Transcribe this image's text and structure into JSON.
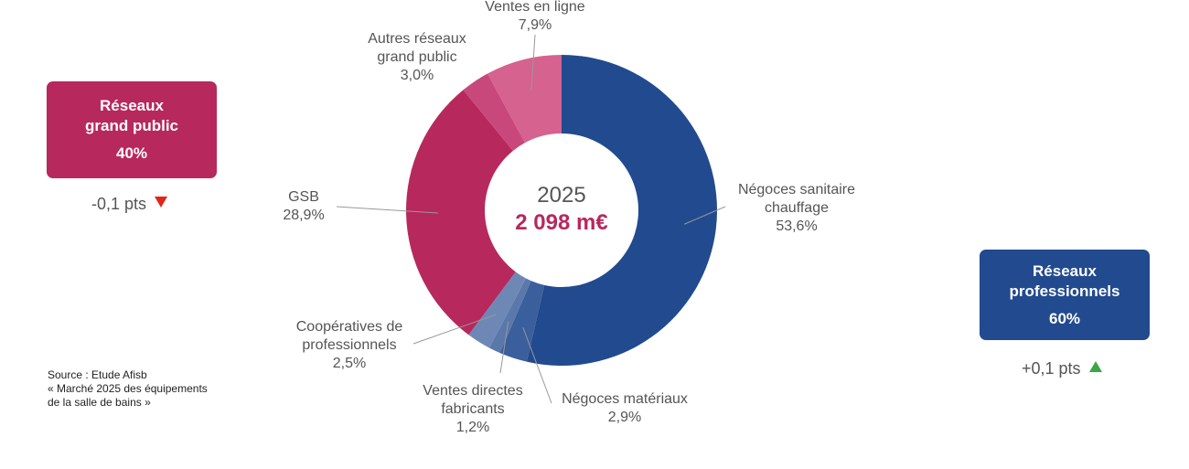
{
  "chart_data": {
    "type": "pie",
    "center_year": "2025",
    "center_total": "2 098 m€",
    "slices": [
      {
        "name": "Négoces sanitaire chauffage",
        "lines": [
          "Négoces sanitaire",
          "chauffage"
        ],
        "value": 53.6,
        "label": "53,6%",
        "color": "#224a8f"
      },
      {
        "name": "Négoces matériaux",
        "lines": [
          "Négoces matériaux"
        ],
        "value": 2.9,
        "label": "2,9%",
        "color": "#3b5f9c"
      },
      {
        "name": "Ventes directes fabricants",
        "lines": [
          "Ventes directes",
          "fabricants"
        ],
        "value": 1.2,
        "label": "1,2%",
        "color": "#5a78aa"
      },
      {
        "name": "Coopératives de professionnels",
        "lines": [
          "Coopératives de",
          "professionnels"
        ],
        "value": 2.5,
        "label": "2,5%",
        "color": "#6e88b6"
      },
      {
        "name": "GSB",
        "lines": [
          "GSB"
        ],
        "value": 28.9,
        "label": "28,9%",
        "color": "#b7285d"
      },
      {
        "name": "Autres réseaux grand public",
        "lines": [
          "Autres réseaux",
          "grand public"
        ],
        "value": 3.0,
        "label": "3,0%",
        "color": "#c9487b"
      },
      {
        "name": "Ventes en ligne",
        "lines": [
          "Ventes en ligne"
        ],
        "value": 7.9,
        "label": "7,9%",
        "color": "#d5628f"
      }
    ]
  },
  "groups": {
    "grand_public": {
      "line1": "Réseaux",
      "line2": "grand public",
      "pct": "40%",
      "delta": "-0,1 pts",
      "color": "#b7285d"
    },
    "professionnels": {
      "line1": "Réseaux",
      "line2": "professionnels",
      "pct": "60%",
      "delta": "+0,1 pts",
      "color": "#224a8f"
    }
  },
  "source": {
    "line1": "Source : Etude Afisb",
    "line2": "« Marché 2025 des équipements",
    "line3": "de la salle de bains »"
  }
}
